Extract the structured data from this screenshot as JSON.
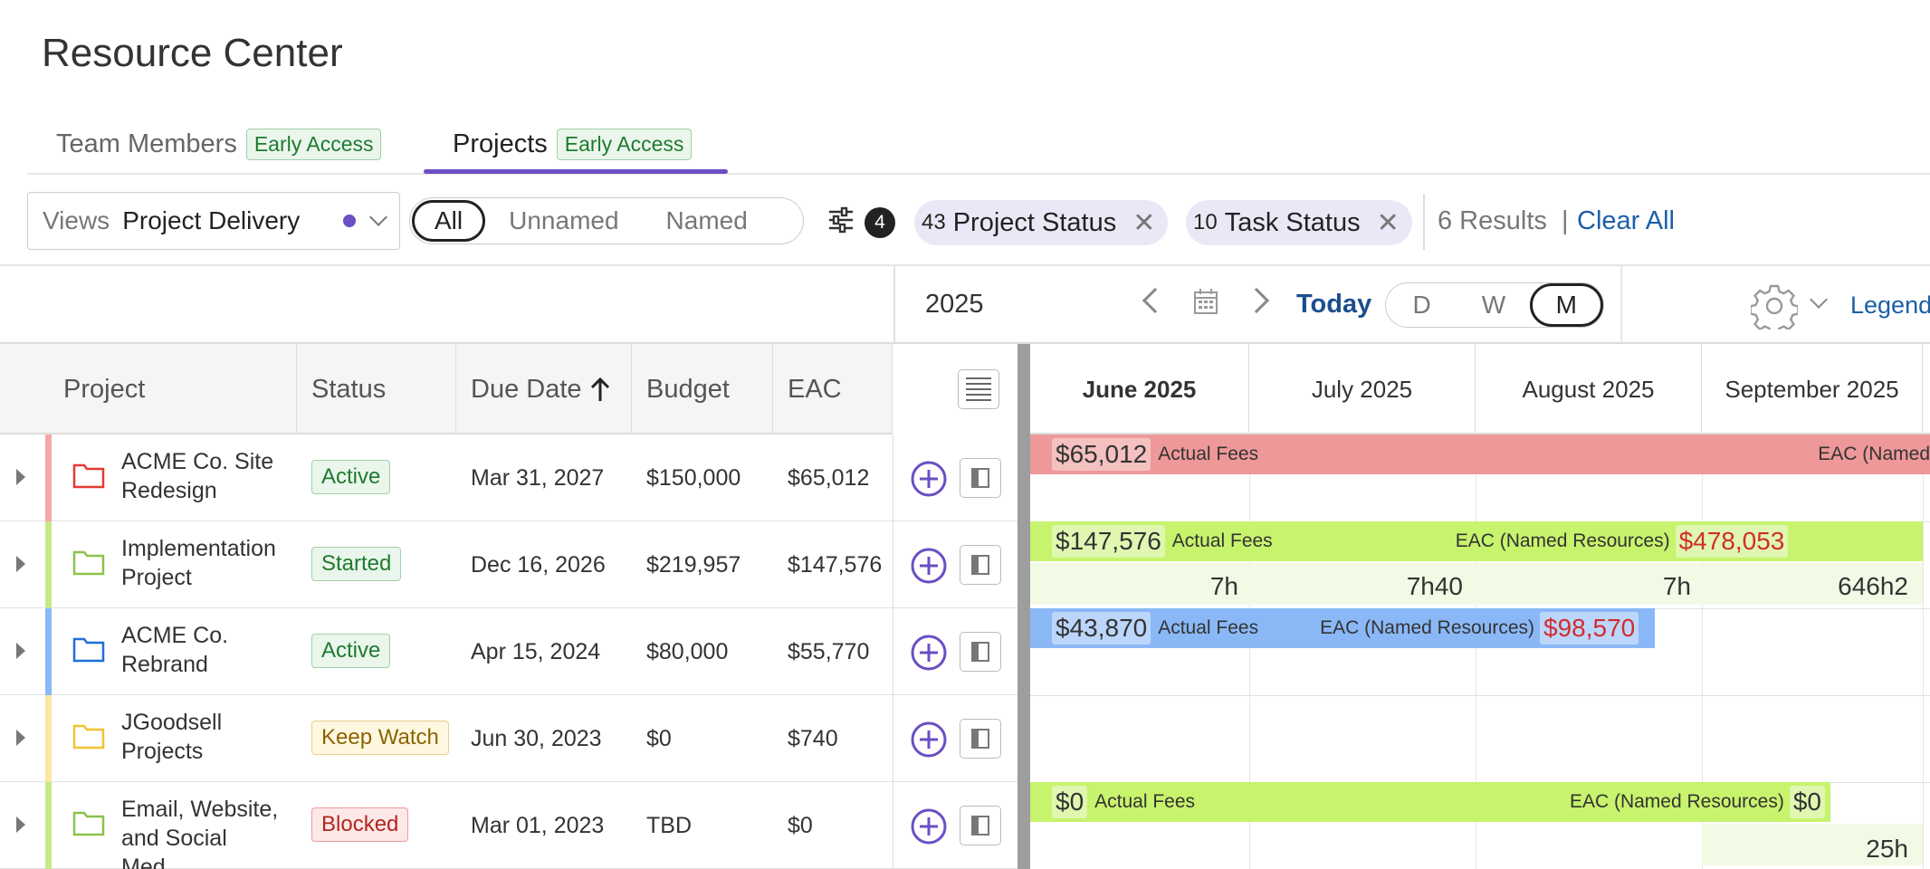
{
  "page": {
    "title": "Resource Center"
  },
  "tabs": [
    {
      "label": "Team Members",
      "badge": "Early Access"
    },
    {
      "label": "Projects",
      "badge": "Early Access"
    }
  ],
  "filters": {
    "views_label": "Views",
    "views_value": "Project Delivery",
    "segments": [
      "All",
      "Unnamed",
      "Named"
    ],
    "filter_count": "4",
    "chips": [
      {
        "count": "43",
        "label": "Project Status"
      },
      {
        "count": "10",
        "label": "Task Status"
      }
    ],
    "results": "6 Results",
    "separator": "|",
    "clear_all": "Clear All"
  },
  "toolbar": {
    "year": "2025",
    "today": "Today",
    "scale": [
      "D",
      "W",
      "M"
    ],
    "legend": "Legend"
  },
  "columns": {
    "project": "Project",
    "status": "Status",
    "due_date": "Due Date",
    "budget": "Budget",
    "eac": "EAC"
  },
  "months": [
    "June 2025",
    "July 2025",
    "August 2025",
    "September 2025"
  ],
  "rows": [
    {
      "name": "ACME Co. Site Redesign",
      "status": "Active",
      "due": "Mar 31, 2027",
      "budget": "$150,000",
      "eac": "$65,012",
      "color": "#f4a7a7",
      "folder_color": "#e53935"
    },
    {
      "name": "Implementation Project",
      "status": "Started",
      "due": "Dec 16, 2026",
      "budget": "$219,957",
      "eac": "$147,576",
      "color": "#c5ea8a",
      "folder_color": "#8bc34a"
    },
    {
      "name": "ACME Co. Rebrand",
      "status": "Active",
      "due": "Apr 15, 2024",
      "budget": "$80,000",
      "eac": "$55,770",
      "color": "#8ab8f7",
      "folder_color": "#1e6fd9"
    },
    {
      "name": "JGoodsell Projects",
      "status": "Keep Watch",
      "due": "Jun 30, 2023",
      "budget": "$0",
      "eac": "$740",
      "color": "#fbe7a0",
      "folder_color": "#f2c230"
    },
    {
      "name": "Email, Website, and Social Med...",
      "status": "Blocked",
      "due": "Mar 01, 2023",
      "budget": "TBD",
      "eac": "$0",
      "color": "#c5ea8a",
      "folder_color": "#8bc34a"
    }
  ],
  "timeline": {
    "row1": {
      "actual": "$65,012",
      "actual_label": "Actual Fees",
      "eac_label": "EAC (Named"
    },
    "row2": {
      "actual": "$147,576",
      "actual_label": "Actual Fees",
      "eac_label": "EAC (Named Resources)",
      "eac": "$478,053",
      "hours": [
        "7h",
        "7h40",
        "7h",
        "646h2"
      ]
    },
    "row3": {
      "actual": "$43,870",
      "actual_label": "Actual Fees",
      "eac_label": "EAC (Named Resources)",
      "eac": "$98,570"
    },
    "row5": {
      "actual": "$0",
      "actual_label": "Actual Fees",
      "eac_label": "EAC (Named Resources)",
      "eac": "$0",
      "hours": [
        "25h"
      ]
    }
  }
}
